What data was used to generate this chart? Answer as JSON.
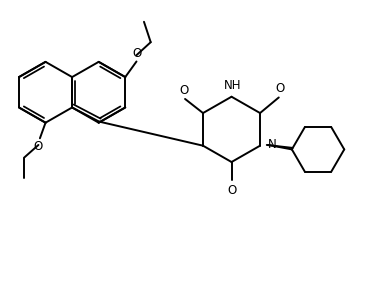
{
  "bg_color": "#ffffff",
  "line_color": "#000000",
  "line_width": 1.4,
  "figsize": [
    3.77,
    2.81
  ],
  "dpi": 100,
  "xlim": [
    0,
    10
  ],
  "ylim": [
    0,
    7.5
  ]
}
